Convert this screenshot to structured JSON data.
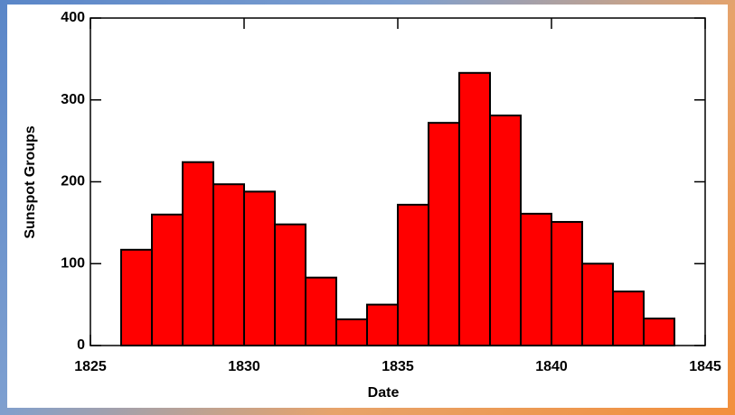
{
  "chart_data": {
    "type": "histogram",
    "bins": [
      1826,
      1827,
      1828,
      1829,
      1830,
      1831,
      1832,
      1833,
      1834,
      1835,
      1836,
      1837,
      1838,
      1839,
      1840,
      1841,
      1842,
      1843,
      1844
    ],
    "counts": [
      117,
      160,
      224,
      197,
      188,
      148,
      83,
      32,
      50,
      172,
      272,
      333,
      281,
      161,
      151,
      100,
      66,
      33
    ],
    "color": "#ff0000",
    "xlabel": "Date",
    "ylabel": "Sunspot Groups",
    "xlim": [
      1825,
      1845
    ],
    "xticks": [
      1825,
      1830,
      1835,
      1840,
      1845
    ],
    "ylim": [
      0,
      400
    ],
    "yticks": [
      0,
      100,
      200,
      300,
      400
    ]
  }
}
